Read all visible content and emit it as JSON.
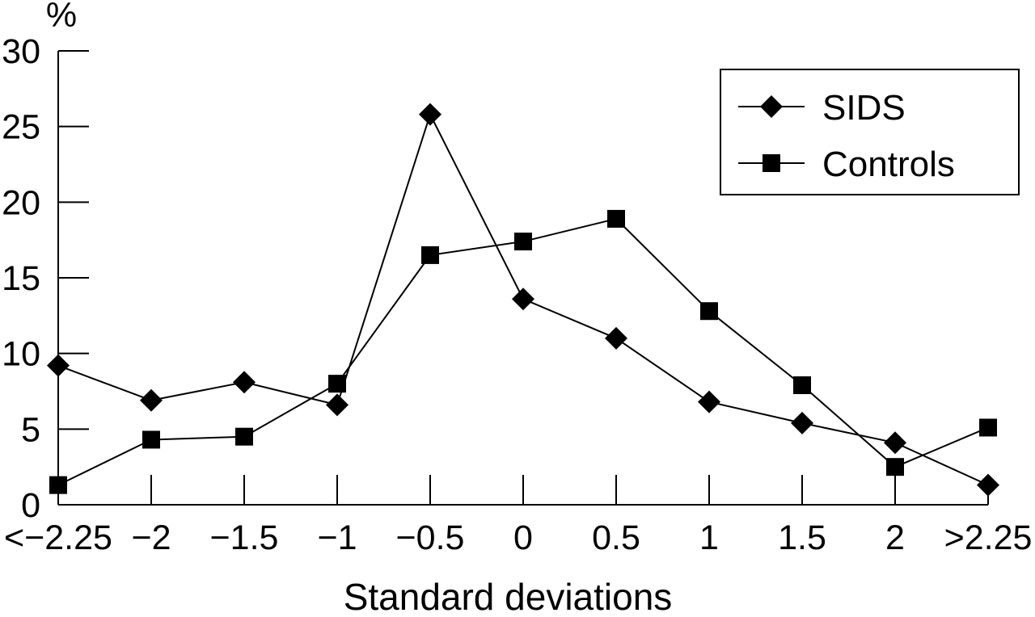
{
  "chart_data": {
    "type": "line",
    "title": "",
    "xlabel": "Standard deviations",
    "ylabel": "%",
    "categories": [
      "<−2.25",
      "−2",
      "−1.5",
      "−1",
      "−0.5",
      "0",
      "0.5",
      "1",
      "1.5",
      "2",
      ">2.25"
    ],
    "ylim": [
      0,
      30
    ],
    "yticks": [
      0,
      5,
      10,
      15,
      20,
      25,
      30
    ],
    "ytick_labels": [
      "0",
      "5",
      "10",
      "15",
      "20",
      "25",
      "30"
    ],
    "grid": false,
    "legend_position": "top-right",
    "series": [
      {
        "name": "SIDS",
        "marker": "diamond",
        "color": "#000000",
        "values": [
          9.2,
          6.9,
          8.1,
          6.6,
          25.8,
          13.6,
          11.0,
          6.8,
          5.4,
          4.1,
          1.3
        ]
      },
      {
        "name": "Controls",
        "marker": "square",
        "color": "#000000",
        "values": [
          1.3,
          4.3,
          4.5,
          8.0,
          16.5,
          17.4,
          18.9,
          12.8,
          7.9,
          2.5,
          5.1
        ]
      }
    ]
  }
}
